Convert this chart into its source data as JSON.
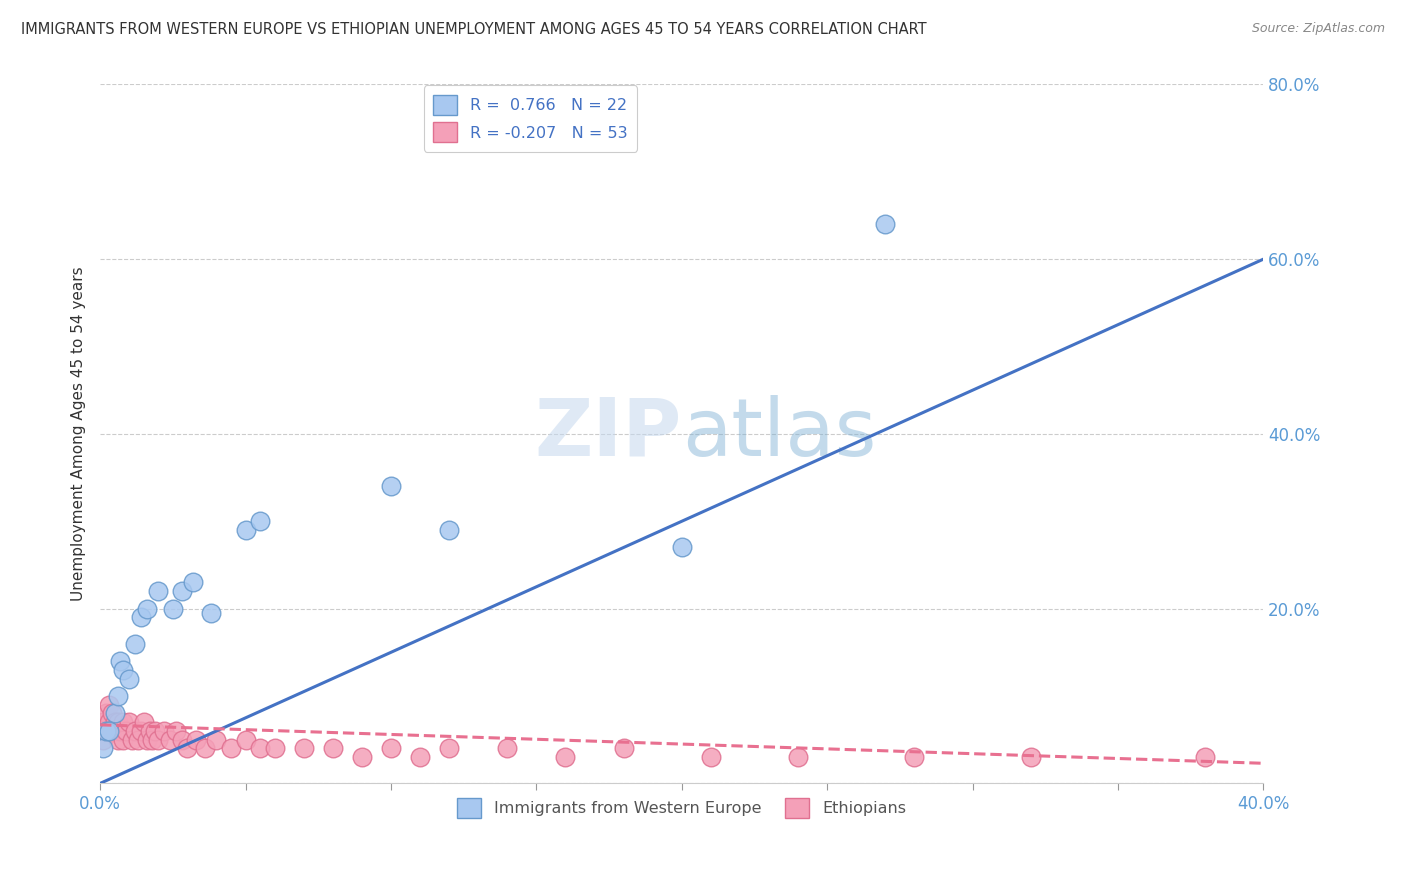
{
  "title": "IMMIGRANTS FROM WESTERN EUROPE VS ETHIOPIAN UNEMPLOYMENT AMONG AGES 45 TO 54 YEARS CORRELATION CHART",
  "source": "Source: ZipAtlas.com",
  "ylabel": "Unemployment Among Ages 45 to 54 years",
  "blue_R": 0.766,
  "blue_N": 22,
  "pink_R": -0.207,
  "pink_N": 53,
  "blue_color": "#A8C8F0",
  "pink_color": "#F4A0B8",
  "blue_edge_color": "#6699CC",
  "pink_edge_color": "#E07090",
  "blue_line_color": "#4472C4",
  "pink_line_color": "#E87090",
  "title_color": "#333333",
  "tick_label_color": "#5B9BD5",
  "ylabel_color": "#333333",
  "watermark_color": "#D0E4F5",
  "xlim": [
    0.0,
    0.4
  ],
  "ylim": [
    0.0,
    0.8
  ],
  "blue_scatter_x": [
    0.001,
    0.002,
    0.003,
    0.005,
    0.006,
    0.007,
    0.008,
    0.01,
    0.012,
    0.014,
    0.016,
    0.02,
    0.025,
    0.028,
    0.032,
    0.038,
    0.05,
    0.055,
    0.1,
    0.12,
    0.2,
    0.27
  ],
  "blue_scatter_y": [
    0.04,
    0.06,
    0.06,
    0.08,
    0.1,
    0.14,
    0.13,
    0.12,
    0.16,
    0.19,
    0.2,
    0.22,
    0.2,
    0.22,
    0.23,
    0.195,
    0.29,
    0.3,
    0.34,
    0.29,
    0.27,
    0.64
  ],
  "pink_scatter_x": [
    0.001,
    0.001,
    0.002,
    0.002,
    0.003,
    0.003,
    0.004,
    0.004,
    0.005,
    0.005,
    0.006,
    0.006,
    0.007,
    0.008,
    0.008,
    0.009,
    0.01,
    0.011,
    0.012,
    0.013,
    0.014,
    0.015,
    0.016,
    0.017,
    0.018,
    0.019,
    0.02,
    0.022,
    0.024,
    0.026,
    0.028,
    0.03,
    0.033,
    0.036,
    0.04,
    0.045,
    0.05,
    0.055,
    0.06,
    0.07,
    0.08,
    0.09,
    0.1,
    0.11,
    0.12,
    0.14,
    0.16,
    0.18,
    0.21,
    0.24,
    0.28,
    0.32,
    0.38
  ],
  "pink_scatter_y": [
    0.05,
    0.07,
    0.06,
    0.08,
    0.07,
    0.09,
    0.06,
    0.08,
    0.06,
    0.07,
    0.05,
    0.07,
    0.06,
    0.07,
    0.05,
    0.06,
    0.07,
    0.05,
    0.06,
    0.05,
    0.06,
    0.07,
    0.05,
    0.06,
    0.05,
    0.06,
    0.05,
    0.06,
    0.05,
    0.06,
    0.05,
    0.04,
    0.05,
    0.04,
    0.05,
    0.04,
    0.05,
    0.04,
    0.04,
    0.04,
    0.04,
    0.03,
    0.04,
    0.03,
    0.04,
    0.04,
    0.03,
    0.04,
    0.03,
    0.03,
    0.03,
    0.03,
    0.03
  ],
  "grid_color": "#CCCCCC",
  "background_color": "#FFFFFF",
  "legend_label_blue": "Immigrants from Western Europe",
  "legend_label_pink": "Ethiopians"
}
